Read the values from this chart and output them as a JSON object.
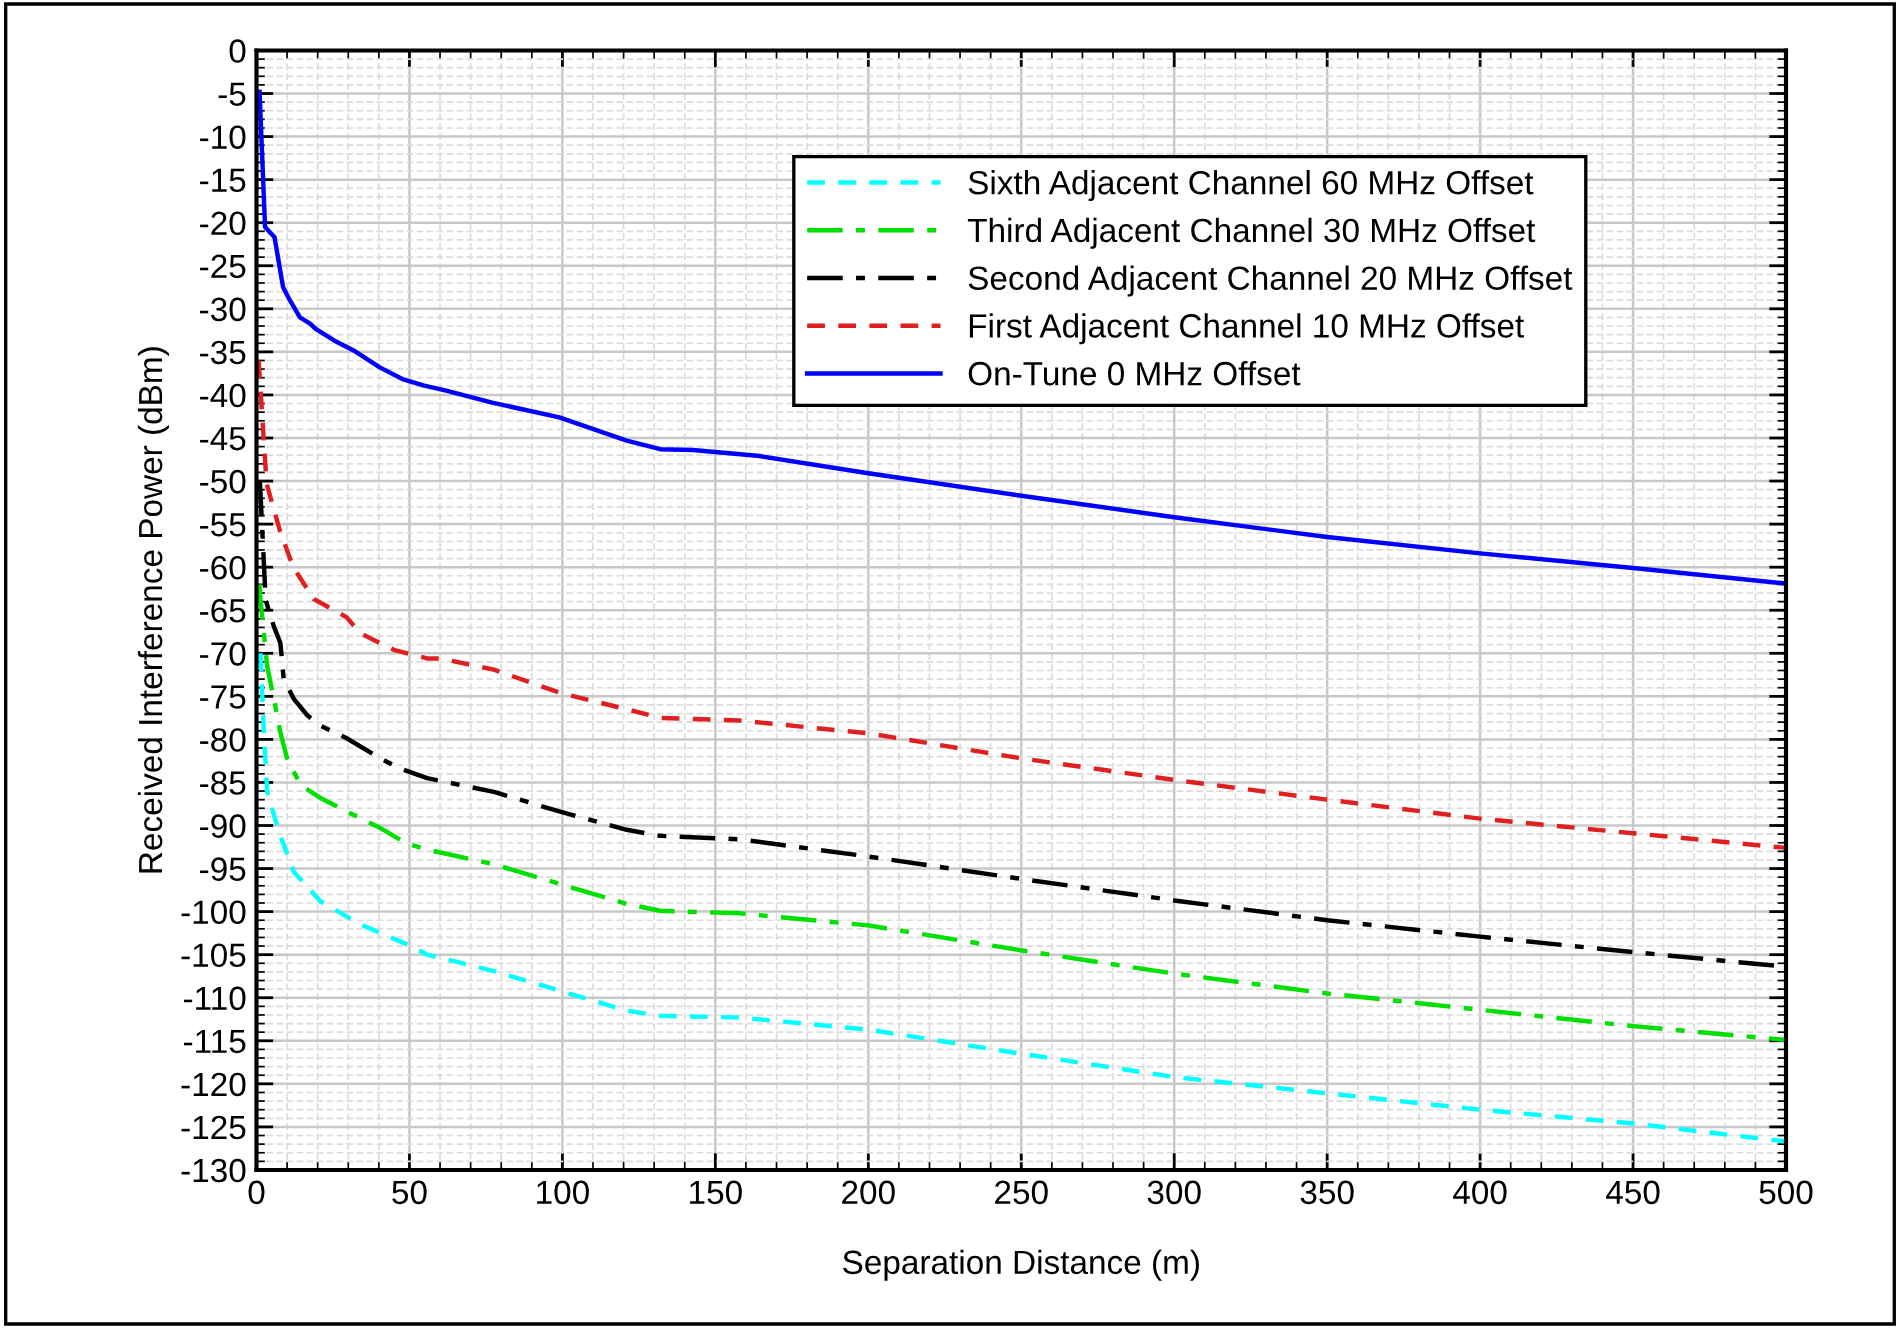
{
  "chart_data": {
    "type": "line",
    "xlabel": "Separation Distance (m)",
    "ylabel": "Received Interference Power (dBm)",
    "xlim": [
      0,
      500
    ],
    "ylim": [
      -130,
      0
    ],
    "xticks": [
      0,
      50,
      100,
      150,
      200,
      250,
      300,
      350,
      400,
      450,
      500
    ],
    "yticks": [
      0,
      -5,
      -10,
      -15,
      -20,
      -25,
      -30,
      -35,
      -40,
      -45,
      -50,
      -55,
      -60,
      -65,
      -70,
      -75,
      -80,
      -85,
      -90,
      -95,
      -100,
      -105,
      -110,
      -115,
      -120,
      -125,
      -130
    ],
    "grid": true,
    "legend": "top right",
    "marker": "none",
    "series": [
      {
        "name": "Sixth Adjacent Channel 60 MHz Offset",
        "color": "#00ffff",
        "line_style": "dashed",
        "x": [
          1.3,
          2.4,
          3.5,
          7.4,
          12.2,
          20.9,
          34,
          49.2,
          55.8,
          77.6,
          99.3,
          121,
          132,
          158,
          200,
          250,
          300,
          350,
          400,
          450,
          500
        ],
        "values": [
          -70,
          -79.2,
          -86.1,
          -90.8,
          -95.4,
          -98.8,
          -101.5,
          -103.8,
          -105,
          -106.9,
          -109.2,
          -111.5,
          -112.1,
          -112.3,
          -113.7,
          -116.5,
          -119.2,
          -121.1,
          -123,
          -124.6,
          -126.7
        ]
      },
      {
        "name": "Third Adjacent Channel 30 MHz Offset",
        "color": "#00e000",
        "line_style": "dashdot",
        "x": [
          1,
          1.3,
          3.5,
          5.7,
          7.8,
          10,
          14.4,
          20.9,
          29.6,
          40.5,
          49.2,
          55.8,
          77.6,
          99.3,
          121,
          132,
          158,
          200,
          250,
          300,
          350,
          400,
          450,
          500
        ],
        "values": [
          -62,
          -63.8,
          -71.5,
          -75.3,
          -79.2,
          -82.2,
          -85.3,
          -86.8,
          -88.4,
          -90.3,
          -92.1,
          -92.8,
          -94.5,
          -96.8,
          -99.1,
          -99.9,
          -100.2,
          -101.6,
          -104.5,
          -107.2,
          -109.5,
          -111.4,
          -113.3,
          -114.9
        ]
      },
      {
        "name": "Second Adjacent Channel 20 MHz Offset",
        "color": "#000000",
        "line_style": "dashdot",
        "x": [
          1.1,
          3,
          4.6,
          5.7,
          7.8,
          8.9,
          12.2,
          16.6,
          20.9,
          29.6,
          40.5,
          47,
          55.8,
          77.6,
          99.3,
          121,
          132,
          158,
          200,
          250,
          300,
          350,
          400,
          450,
          500
        ],
        "values": [
          -50,
          -63.8,
          -65.7,
          -66.9,
          -68.8,
          -73,
          -75.3,
          -77.2,
          -78.4,
          -79.9,
          -82.2,
          -83.4,
          -84.5,
          -86.1,
          -88.4,
          -90.5,
          -91.2,
          -91.6,
          -93.6,
          -96.2,
          -98.7,
          -101,
          -102.9,
          -104.7,
          -106.4
        ]
      },
      {
        "name": "First Adjacent Channel 10 MHz Offset",
        "color": "#e02020",
        "line_style": "dashed",
        "x": [
          0.7,
          3.3,
          7.6,
          12,
          18.7,
          29.4,
          34,
          44.9,
          55.8,
          60,
          77.6,
          99.3,
          121,
          132,
          158,
          200,
          250,
          300,
          350,
          400,
          450,
          500
        ],
        "values": [
          -36,
          -50.3,
          -55.7,
          -60,
          -63.7,
          -65.8,
          -67.7,
          -69.6,
          -70.6,
          -70.6,
          -71.9,
          -74.6,
          -76.5,
          -77.5,
          -77.8,
          -79.3,
          -82.2,
          -84.7,
          -87,
          -89.2,
          -90.9,
          -92.6
        ]
      },
      {
        "name": "On-Tune 0 MHz Offset",
        "color": "#0000ff",
        "line_style": "solid",
        "x": [
          1,
          2.8,
          5.9,
          8.7,
          10.9,
          14.2,
          17.4,
          19.6,
          25.5,
          31.6,
          40.3,
          48,
          54.5,
          62,
          77,
          99,
          121,
          132,
          142.7,
          164.5,
          200,
          250,
          300,
          350,
          400,
          450,
          500
        ],
        "values": [
          -4.8,
          -20.5,
          -21.7,
          -27.5,
          -29,
          -31,
          -31.7,
          -32.4,
          -33.7,
          -34.8,
          -36.8,
          -38.2,
          -38.9,
          -39.5,
          -40.9,
          -42.6,
          -45.3,
          -46.3,
          -46.4,
          -47.1,
          -49.1,
          -51.7,
          -54.2,
          -56.5,
          -58.4,
          -60.1,
          -61.9
        ]
      }
    ]
  }
}
